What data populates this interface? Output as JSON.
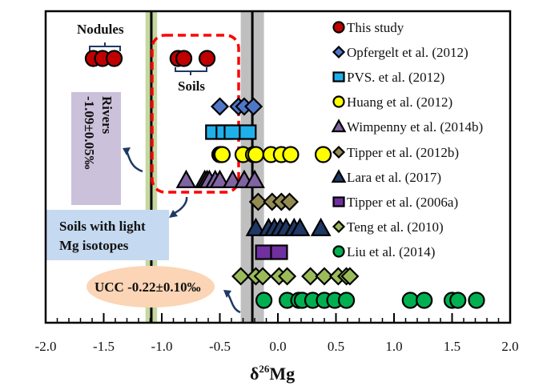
{
  "chart_data": {
    "type": "scatter",
    "title": "",
    "xlabel": "δ26Mg",
    "xlabel_main": "δ",
    "xlabel_sup": "26",
    "xlabel_tail": "Mg",
    "ylabel": "",
    "xlim": [
      -2.0,
      2.0
    ],
    "xticks": [
      -2.0,
      -1.5,
      -1.0,
      -0.5,
      0.0,
      0.5,
      1.0,
      1.5,
      2.0
    ],
    "xtick_labels": [
      "-2.0",
      "-1.5",
      "-1.0",
      "-0.5",
      "0.0",
      "0.5",
      "1.0",
      "1.5",
      "2.0"
    ],
    "grid": false,
    "legend_position": "top-right",
    "reference_lines": [
      {
        "name": "Rivers",
        "value": -1.09,
        "uncertainty": 0.05,
        "band_color": "#c4d7a0"
      },
      {
        "name": "UCC",
        "value": -0.22,
        "uncertainty": 0.1,
        "band_color": "#bfbfbf"
      }
    ],
    "series": [
      {
        "name": "This study",
        "marker": "circle",
        "fill": "#c00000",
        "values": [
          -1.59,
          -1.51,
          -1.41,
          -0.86,
          -0.81,
          -0.61
        ]
      },
      {
        "name": "Opfergelt et al. (2012)",
        "marker": "diamond",
        "fill": "#4f76c8",
        "values": [
          -0.5,
          -0.34,
          -0.29,
          -0.21
        ]
      },
      {
        "name": "PVS. et al. (2012)",
        "marker": "square",
        "fill": "#1fb0ea",
        "values": [
          -0.55,
          -0.46,
          -0.39,
          -0.26
        ]
      },
      {
        "name": "Huang et al. (2012)",
        "marker": "circle",
        "fill": "#ffff00",
        "values": [
          -0.5,
          -0.49,
          -0.48,
          -0.3,
          -0.21,
          -0.19,
          -0.06,
          0.03,
          0.11,
          0.39
        ]
      },
      {
        "name": "Wimpenny et al. (2014b)",
        "marker": "triangle",
        "fill": "#8064a2",
        "values": [
          -0.79,
          -0.63,
          -0.61,
          -0.59,
          -0.54,
          -0.5,
          -0.39,
          -0.29,
          -0.2
        ]
      },
      {
        "name": "Tipper et al. (2012b)",
        "marker": "diamond",
        "fill": "#948a54",
        "values": [
          -0.17,
          -0.05,
          0.03,
          0.1
        ]
      },
      {
        "name": "Lara et al. (2017)",
        "marker": "triangle",
        "fill": "#1f3864",
        "values": [
          -0.19,
          -0.08,
          -0.03,
          0.02,
          0.07,
          0.14,
          0.19,
          0.37
        ]
      },
      {
        "name": "Tipper et al. (2006a)",
        "marker": "square",
        "fill": "#7030a0",
        "values": [
          -0.12,
          0.01
        ]
      },
      {
        "name": "Teng et al. (2010)",
        "marker": "diamond",
        "fill": "#9bbb59",
        "values": [
          -0.32,
          -0.19,
          -0.13,
          0.01,
          0.08,
          0.28,
          0.4,
          0.52,
          0.59,
          0.62
        ]
      },
      {
        "name": "Liu et al. (2014)",
        "marker": "circle",
        "fill": "#00b050",
        "values": [
          -0.12,
          0.08,
          0.18,
          0.21,
          0.3,
          0.4,
          0.49,
          0.59,
          1.14,
          1.26,
          1.5,
          1.55,
          1.71
        ]
      }
    ],
    "annotations": {
      "nodules": "Nodules",
      "soils": "Soils",
      "rivers_title": "Rivers",
      "rivers_value": "-1.09±0.05‰",
      "soils_light_line1": "Soils with light",
      "soils_light_line2": "Mg isotopes",
      "ucc": "UCC -0.22±0.10‰"
    }
  }
}
